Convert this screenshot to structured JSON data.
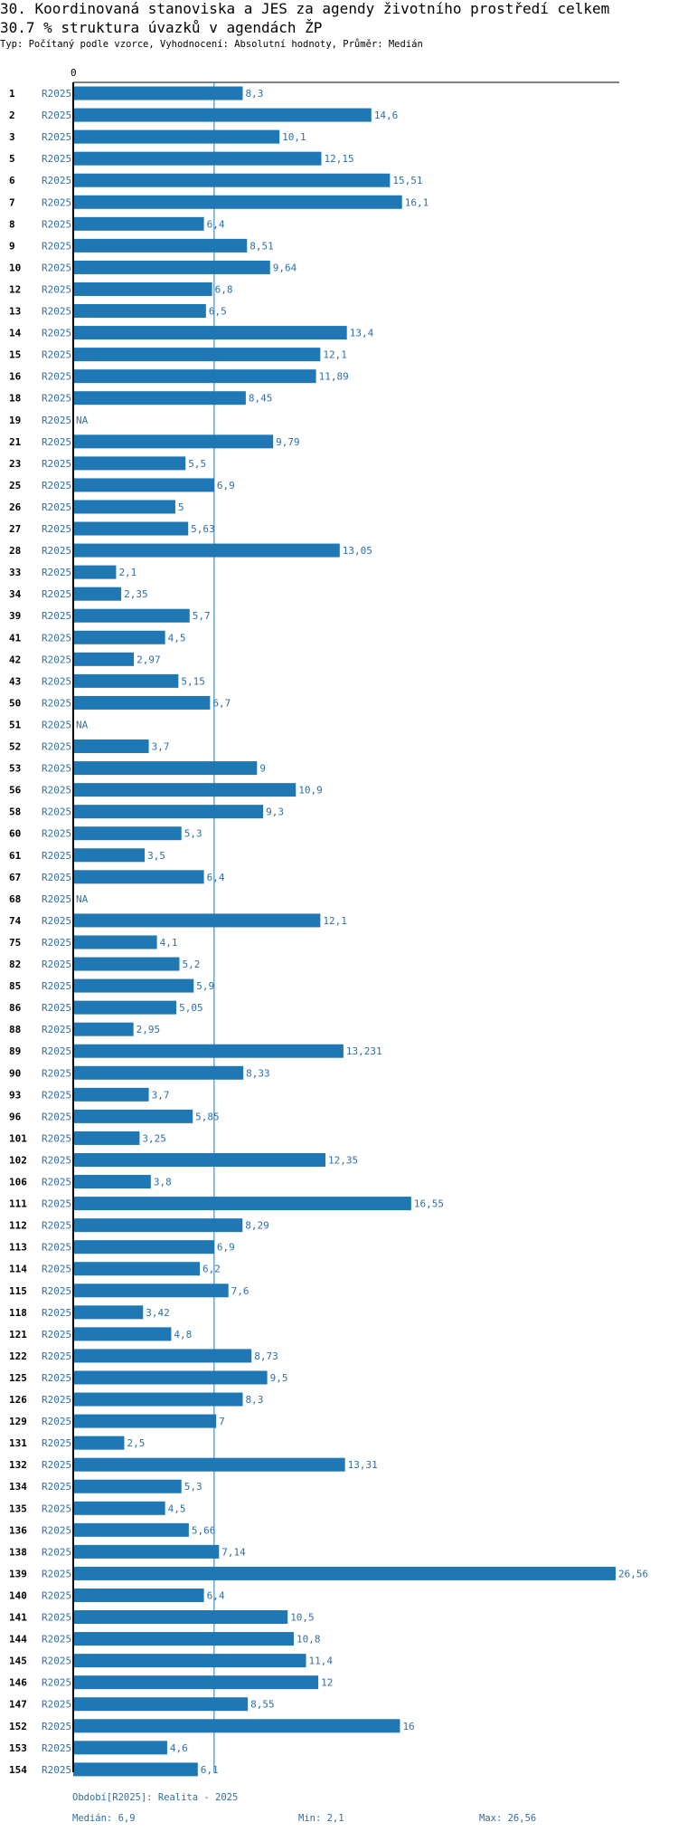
{
  "chart_data": {
    "type": "bar",
    "orientation": "horizontal",
    "title": "30. Koordinovaná stanoviska a JES za agendy životního prostředí celkem",
    "subtitle": "30.7 % struktura úvazků v agendách ŽP",
    "meta": "Typ: Počítaný podle vzorce, Vyhodnocení: Absolutní hodnoty, Průměr: Medián",
    "series_label": "R2025",
    "zero_tick": "0",
    "xlim": [
      0,
      26.56
    ],
    "median_value": 6.9,
    "na_label": "NA",
    "categories": [
      "1",
      "2",
      "3",
      "5",
      "6",
      "7",
      "8",
      "9",
      "10",
      "12",
      "13",
      "14",
      "15",
      "16",
      "18",
      "19",
      "21",
      "23",
      "25",
      "26",
      "27",
      "28",
      "33",
      "34",
      "39",
      "41",
      "42",
      "43",
      "50",
      "51",
      "52",
      "53",
      "56",
      "58",
      "60",
      "61",
      "67",
      "68",
      "74",
      "75",
      "82",
      "85",
      "86",
      "88",
      "89",
      "90",
      "93",
      "96",
      "101",
      "102",
      "106",
      "111",
      "112",
      "113",
      "114",
      "115",
      "118",
      "121",
      "122",
      "125",
      "126",
      "129",
      "131",
      "132",
      "134",
      "135",
      "136",
      "138",
      "139",
      "140",
      "141",
      "144",
      "145",
      "146",
      "147",
      "152",
      "153",
      "154"
    ],
    "values": [
      8.3,
      14.6,
      10.1,
      12.15,
      15.51,
      16.1,
      6.4,
      8.51,
      9.64,
      6.8,
      6.5,
      13.4,
      12.1,
      11.89,
      8.45,
      null,
      9.79,
      5.5,
      6.9,
      5,
      5.63,
      13.05,
      2.1,
      2.35,
      5.7,
      4.5,
      2.97,
      5.15,
      6.7,
      null,
      3.7,
      9,
      10.9,
      9.3,
      5.3,
      3.5,
      6.4,
      null,
      12.1,
      4.1,
      5.2,
      5.9,
      5.05,
      2.95,
      13.231,
      8.33,
      3.7,
      5.85,
      3.25,
      12.35,
      3.8,
      16.55,
      8.29,
      6.9,
      6.2,
      7.6,
      3.42,
      4.8,
      8.73,
      9.5,
      8.3,
      7,
      2.5,
      13.31,
      5.3,
      4.5,
      5.66,
      7.14,
      26.56,
      6.4,
      10.5,
      10.8,
      11.4,
      12,
      8.55,
      16,
      4.6,
      6.1
    ],
    "labels": [
      "8,3",
      "14,6",
      "10,1",
      "12,15",
      "15,51",
      "16,1",
      "6,4",
      "8,51",
      "9,64",
      "6,8",
      "6,5",
      "13,4",
      "12,1",
      "11,89",
      "8,45",
      "NA",
      "9,79",
      "5,5",
      "6,9",
      "5",
      "5,63",
      "13,05",
      "2,1",
      "2,35",
      "5,7",
      "4,5",
      "2,97",
      "5,15",
      "6,7",
      "NA",
      "3,7",
      "9",
      "10,9",
      "9,3",
      "5,3",
      "3,5",
      "6,4",
      "NA",
      "12,1",
      "4,1",
      "5,2",
      "5,9",
      "5,05",
      "2,95",
      "13,231",
      "8,33",
      "3,7",
      "5,85",
      "3,25",
      "12,35",
      "3,8",
      "16,55",
      "8,29",
      "6,9",
      "6,2",
      "7,6",
      "3,42",
      "4,8",
      "8,73",
      "9,5",
      "8,3",
      "7",
      "2,5",
      "13,31",
      "5,3",
      "4,5",
      "5,66",
      "7,14",
      "26,56",
      "6,4",
      "10,5",
      "10,8",
      "11,4",
      "12",
      "8,55",
      "16",
      "4,6",
      "6,1"
    ],
    "colors": {
      "bar": "#1f77b4",
      "label": "#2e6ea8",
      "axis": "#000000",
      "median_line": "#1f77b4"
    }
  },
  "footer": {
    "period": "Období[R2025]: Realita - 2025",
    "median": "Medián: 6,9",
    "min": "Min: 2,1",
    "max": "Max: 26,56"
  }
}
